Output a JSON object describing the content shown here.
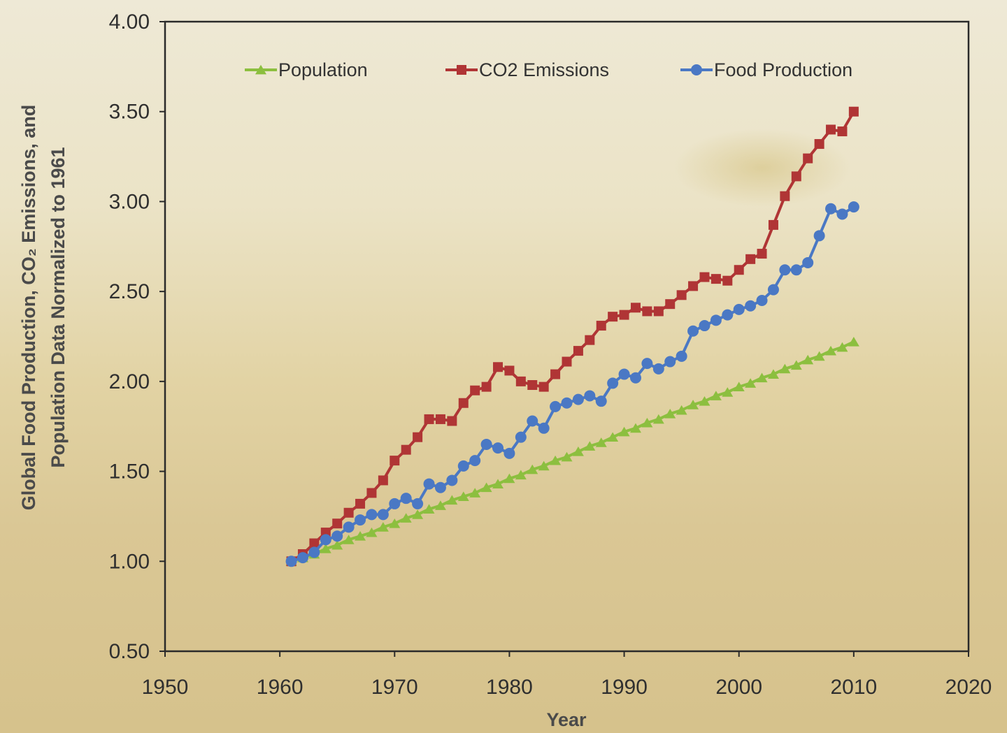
{
  "chart_data": {
    "type": "line",
    "xlabel": "Year",
    "ylabel_lines": [
      "Global Food Production, CO₂ Emissions, and",
      "Population Data Normalized to 1961"
    ],
    "xlim": [
      1950,
      2020
    ],
    "ylim": [
      0.5,
      4.0
    ],
    "x_ticks": [
      1950,
      1960,
      1970,
      1980,
      1990,
      2000,
      2010,
      2020
    ],
    "y_ticks": [
      0.5,
      1.0,
      1.5,
      2.0,
      2.5,
      3.0,
      3.5,
      4.0
    ],
    "x_tick_labels": [
      "1950",
      "1960",
      "1970",
      "1980",
      "1990",
      "2000",
      "2010",
      "2020"
    ],
    "y_tick_labels": [
      "0.50",
      "1.00",
      "1.50",
      "2.00",
      "2.50",
      "3.00",
      "3.50",
      "4.00"
    ],
    "grid": false,
    "legend_position": "top",
    "x": [
      1961,
      1962,
      1963,
      1964,
      1965,
      1966,
      1967,
      1968,
      1969,
      1970,
      1971,
      1972,
      1973,
      1974,
      1975,
      1976,
      1977,
      1978,
      1979,
      1980,
      1981,
      1982,
      1983,
      1984,
      1985,
      1986,
      1987,
      1988,
      1989,
      1990,
      1991,
      1992,
      1993,
      1994,
      1995,
      1996,
      1997,
      1998,
      1999,
      2000,
      2001,
      2002,
      2003,
      2004,
      2005,
      2006,
      2007,
      2008,
      2009,
      2010
    ],
    "series": [
      {
        "name": "Population",
        "color": "#8cbf3f",
        "marker": "triangle",
        "values": [
          1.0,
          1.02,
          1.04,
          1.07,
          1.09,
          1.12,
          1.14,
          1.16,
          1.19,
          1.21,
          1.24,
          1.26,
          1.29,
          1.31,
          1.34,
          1.36,
          1.38,
          1.41,
          1.43,
          1.46,
          1.48,
          1.51,
          1.53,
          1.56,
          1.58,
          1.61,
          1.64,
          1.66,
          1.69,
          1.72,
          1.74,
          1.77,
          1.79,
          1.82,
          1.84,
          1.87,
          1.89,
          1.92,
          1.94,
          1.97,
          1.99,
          2.02,
          2.04,
          2.07,
          2.09,
          2.12,
          2.14,
          2.17,
          2.19,
          2.22
        ]
      },
      {
        "name": "CO2 Emissions",
        "color": "#b03535",
        "marker": "square",
        "values": [
          1.0,
          1.04,
          1.1,
          1.16,
          1.21,
          1.27,
          1.32,
          1.38,
          1.45,
          1.56,
          1.62,
          1.69,
          1.79,
          1.79,
          1.78,
          1.88,
          1.95,
          1.97,
          2.08,
          2.06,
          2.0,
          1.98,
          1.97,
          2.04,
          2.11,
          2.17,
          2.23,
          2.31,
          2.36,
          2.37,
          2.41,
          2.39,
          2.39,
          2.43,
          2.48,
          2.53,
          2.58,
          2.57,
          2.56,
          2.62,
          2.68,
          2.71,
          2.87,
          3.03,
          3.14,
          3.24,
          3.32,
          3.4,
          3.39,
          3.5
        ]
      },
      {
        "name": "Food Production",
        "color": "#4a78c4",
        "marker": "circle",
        "values": [
          1.0,
          1.02,
          1.05,
          1.12,
          1.14,
          1.19,
          1.23,
          1.26,
          1.26,
          1.32,
          1.35,
          1.32,
          1.43,
          1.41,
          1.45,
          1.53,
          1.56,
          1.65,
          1.63,
          1.6,
          1.69,
          1.78,
          1.74,
          1.86,
          1.88,
          1.9,
          1.92,
          1.89,
          1.99,
          2.04,
          2.02,
          2.1,
          2.07,
          2.11,
          2.14,
          2.28,
          2.31,
          2.34,
          2.37,
          2.4,
          2.42,
          2.45,
          2.51,
          2.62,
          2.62,
          2.66,
          2.81,
          2.96,
          2.93,
          2.97
        ]
      }
    ]
  }
}
